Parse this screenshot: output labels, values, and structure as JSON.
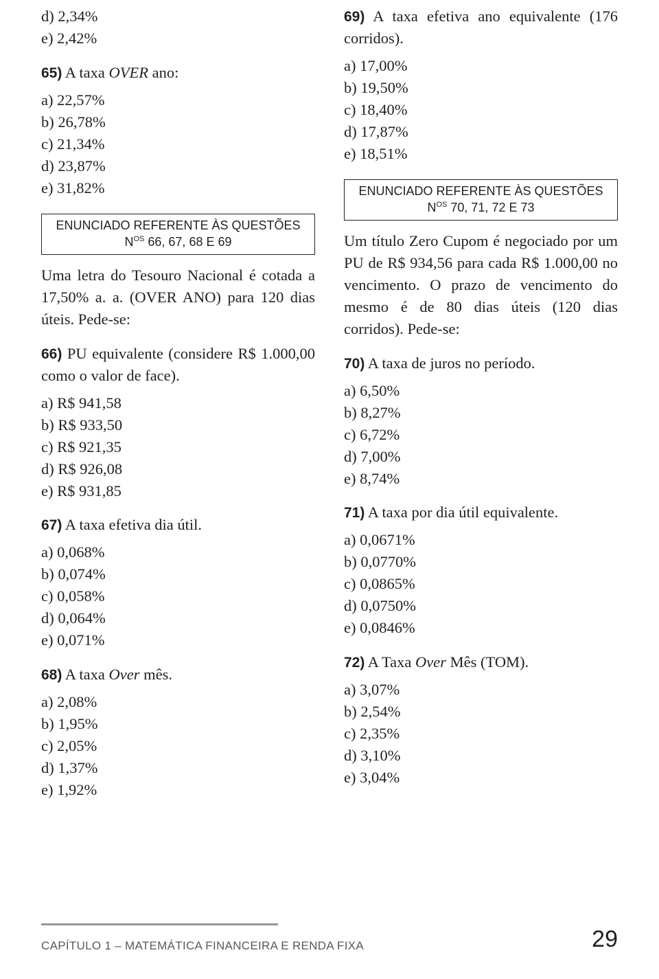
{
  "leftCol": {
    "preOptions": [
      "d) 2,34%",
      "e) 2,42%"
    ],
    "q65": {
      "num": "65)",
      "title_html": " A taxa <span class=\"italic\">OVER</span> ano:",
      "options": [
        "a) 22,57%",
        "b) 26,78%",
        "c) 21,34%",
        "d) 23,87%",
        "e) 31,82%"
      ]
    },
    "box1": {
      "line1": "ENUNCIADO REFERENTE ÀS QUESTÕES",
      "line2_html": "N<span class=\"sup\">OS</span> 66, 67, 68 E 69"
    },
    "intro_html": "Uma letra do Tesouro Nacional é cotada a 17,50% a. a. (OVER ANO) para 120 dias úteis. Pede-se:",
    "q66": {
      "num": "66)",
      "title_html": " PU equivalente (considere R$ 1.000,00 como o valor de face).",
      "options": [
        "a) R$ 941,58",
        "b) R$ 933,50",
        "c) R$ 921,35",
        "d) R$ 926,08",
        "e) R$ 931,85"
      ]
    },
    "q67": {
      "num": "67)",
      "title": " A taxa efetiva dia útil.",
      "options": [
        "a) 0,068%",
        "b) 0,074%",
        "c) 0,058%",
        "d) 0,064%",
        "e) 0,071%"
      ]
    },
    "q68": {
      "num": "68)",
      "title_html": " A taxa <span class=\"italic\">Over</span> mês.",
      "options": [
        "a) 2,08%",
        "b) 1,95%",
        "c) 2,05%",
        "d) 1,37%",
        "e) 1,92%"
      ]
    }
  },
  "rightCol": {
    "q69": {
      "num": "69)",
      "title_html": " A taxa efetiva ano equivalente (176 corridos).",
      "options": [
        "a) 17,00%",
        "b) 19,50%",
        "c) 18,40%",
        "d) 17,87%",
        "e) 18,51%"
      ]
    },
    "box2": {
      "line1": "ENUNCIADO REFERENTE ÀS QUESTÕES",
      "line2_html": "N<span class=\"sup\">OS</span> 70, 71, 72 E 73"
    },
    "intro_html": "Um título Zero Cupom é negociado por um PU de R$ 934,56 para cada R$ 1.000,00 no vencimento. O prazo de vencimento do mesmo é de 80 dias úteis (120 dias corridos). Pede-se:",
    "q70": {
      "num": "70)",
      "title": " A taxa de juros no período.",
      "options": [
        "a) 6,50%",
        "b) 8,27%",
        "c) 6,72%",
        "d) 7,00%",
        "e) 8,74%"
      ]
    },
    "q71": {
      "num": "71)",
      "title": " A taxa por dia útil equivalente.",
      "options": [
        "a) 0,0671%",
        "b) 0,0770%",
        "c) 0,0865%",
        "d) 0,0750%",
        "e) 0,0846%"
      ]
    },
    "q72": {
      "num": "72)",
      "title_html": " A Taxa <span class=\"italic\">Over</span> Mês (TOM).",
      "options": [
        "a) 3,07%",
        "b) 2,54%",
        "c) 2,35%",
        "d) 3,10%",
        "e) 3,04%"
      ]
    }
  },
  "footer": {
    "chapter": "CAPÍTULO 1 – MATEMÁTICA FINANCEIRA E RENDA FIXA",
    "page": "29"
  }
}
